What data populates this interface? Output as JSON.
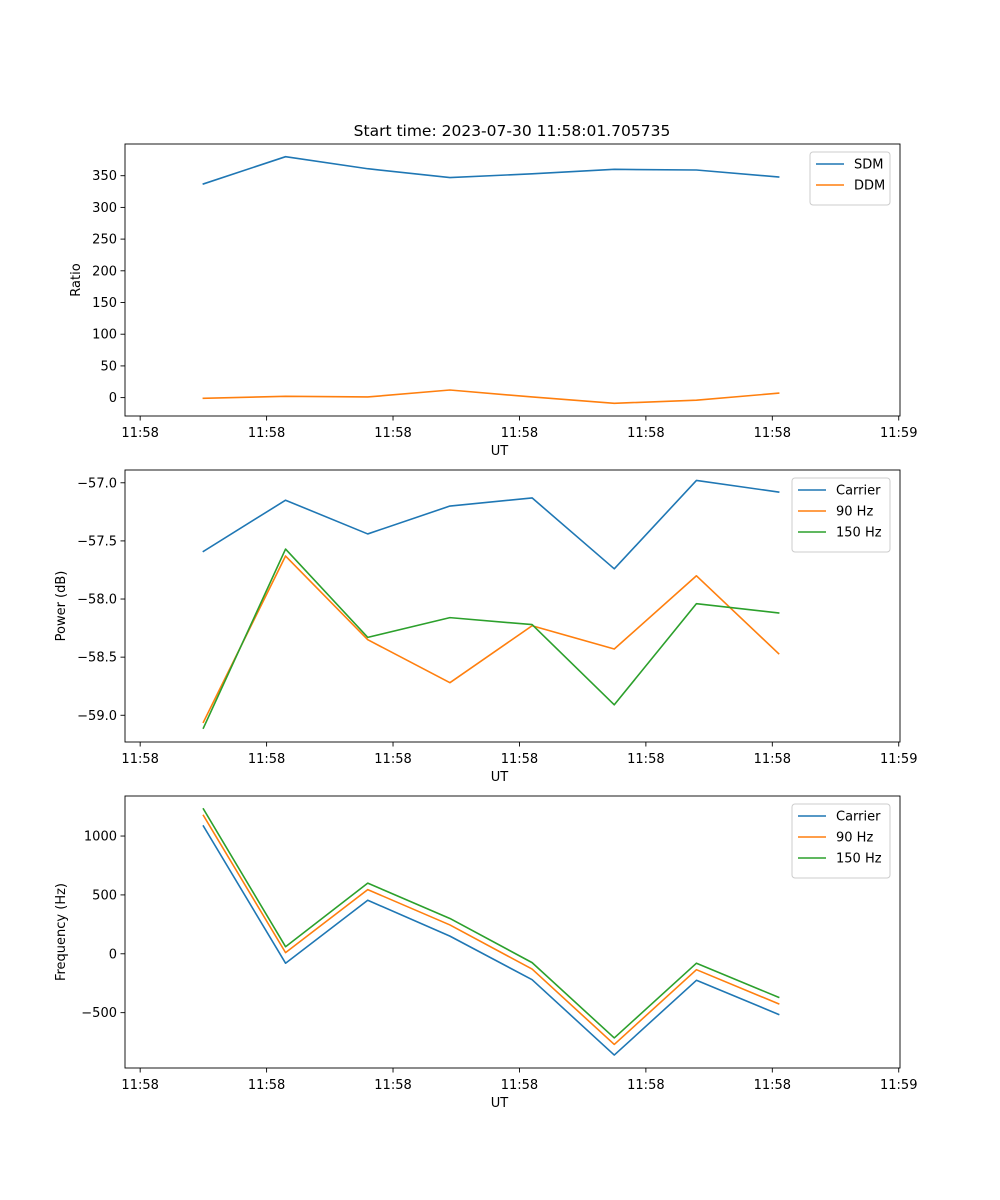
{
  "figure_title": "Start time: 2023-07-30 11:58:01.705735",
  "chart_data": [
    {
      "type": "line",
      "title": "Start time: 2023-07-30 11:58:01.705735",
      "xlabel": "UT",
      "ylabel": "Ratio",
      "x": [
        0.5,
        1.15,
        1.8,
        2.45,
        3.1,
        3.75,
        4.4,
        5.05
      ],
      "x_tick_values": [
        0,
        1,
        2,
        3,
        4,
        5,
        6
      ],
      "x_tick_labels": [
        "11:58",
        "11:58",
        "11:58",
        "11:58",
        "11:58",
        "11:58",
        "11:59"
      ],
      "xlim": [
        -0.12,
        6.01
      ],
      "ylim": [
        -29,
        400
      ],
      "y_ticks": [
        0,
        50,
        100,
        150,
        200,
        250,
        300,
        350
      ],
      "legend_position": "top-right",
      "series": [
        {
          "name": "SDM",
          "color": "#1f77b4",
          "values": [
            337,
            380,
            361,
            347,
            353,
            360,
            359,
            348
          ]
        },
        {
          "name": "DDM",
          "color": "#ff7f0e",
          "values": [
            -1,
            2,
            1,
            12,
            1,
            -9,
            -4,
            7
          ]
        }
      ]
    },
    {
      "type": "line",
      "title": "",
      "xlabel": "UT",
      "ylabel": "Power (dB)",
      "x": [
        0.5,
        1.15,
        1.8,
        2.45,
        3.1,
        3.75,
        4.4,
        5.05
      ],
      "x_tick_values": [
        0,
        1,
        2,
        3,
        4,
        5,
        6
      ],
      "x_tick_labels": [
        "11:58",
        "11:58",
        "11:58",
        "11:58",
        "11:58",
        "11:58",
        "11:59"
      ],
      "xlim": [
        -0.12,
        6.01
      ],
      "ylim": [
        -59.23,
        -56.89
      ],
      "y_ticks": [
        -59.0,
        -58.5,
        -58.0,
        -57.5,
        -57.0
      ],
      "y_tick_labels": [
        "−59.0",
        "−58.5",
        "−58.0",
        "−57.5",
        "−57.0"
      ],
      "legend_position": "top-right",
      "series": [
        {
          "name": "Carrier",
          "color": "#1f77b4",
          "values": [
            -57.59,
            -57.15,
            -57.44,
            -57.2,
            -57.13,
            -57.74,
            -56.98,
            -57.08
          ]
        },
        {
          "name": "90 Hz",
          "color": "#ff7f0e",
          "values": [
            -59.06,
            -57.63,
            -58.35,
            -58.72,
            -58.23,
            -58.43,
            -57.8,
            -58.47
          ]
        },
        {
          "name": "150 Hz",
          "color": "#2ca02c",
          "values": [
            -59.11,
            -57.57,
            -58.33,
            -58.16,
            -58.22,
            -58.91,
            -58.04,
            -58.12
          ]
        }
      ]
    },
    {
      "type": "line",
      "title": "",
      "xlabel": "UT",
      "ylabel": "Frequency (Hz)",
      "x": [
        0.5,
        1.15,
        1.8,
        2.45,
        3.1,
        3.75,
        4.4,
        5.05
      ],
      "x_tick_values": [
        0,
        1,
        2,
        3,
        4,
        5,
        6
      ],
      "x_tick_labels": [
        "11:58",
        "11:58",
        "11:58",
        "11:58",
        "11:58",
        "11:58",
        "11:59"
      ],
      "xlim": [
        -0.12,
        6.01
      ],
      "ylim": [
        -970,
        1340
      ],
      "y_ticks": [
        -500,
        0,
        500,
        1000
      ],
      "y_tick_labels": [
        "−500",
        "0",
        "500",
        "1000"
      ],
      "legend_position": "top-right",
      "series": [
        {
          "name": "Carrier",
          "color": "#1f77b4",
          "values": [
            1085,
            -80,
            455,
            150,
            -220,
            -860,
            -225,
            -515
          ]
        },
        {
          "name": "90 Hz",
          "color": "#ff7f0e",
          "values": [
            1175,
            10,
            545,
            245,
            -130,
            -770,
            -135,
            -425
          ]
        },
        {
          "name": "150 Hz",
          "color": "#2ca02c",
          "values": [
            1230,
            60,
            600,
            300,
            -75,
            -715,
            -80,
            -370
          ]
        }
      ]
    }
  ]
}
